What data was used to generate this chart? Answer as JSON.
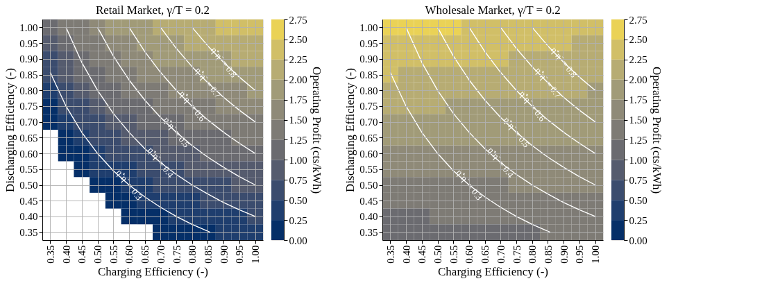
{
  "chart_data": [
    {
      "type": "heatmap",
      "title": "Retail Market, γ/T = 0.2",
      "xlabel": "Charging Efficiency (-)",
      "ylabel": "Discharging Efficiency (-)",
      "clabel": "Operating Profit (cts/kWh)",
      "x": [
        0.35,
        0.4,
        0.45,
        0.5,
        0.55,
        0.6,
        0.65,
        0.7,
        0.75,
        0.8,
        0.85,
        0.9,
        0.95,
        1.0
      ],
      "y": [
        1.0,
        0.95,
        0.9,
        0.85,
        0.8,
        0.75,
        0.7,
        0.65,
        0.6,
        0.55,
        0.5,
        0.45,
        0.4,
        0.35
      ],
      "xlim": [
        0.325,
        1.025
      ],
      "ylim": [
        0.325,
        1.025
      ],
      "xticks": [
        0.35,
        {
          "value": 0.4,
          "label": "0.40"
        },
        0.45,
        {
          "value": 0.5,
          "label": "0.50"
        },
        0.55,
        {
          "value": 0.6,
          "label": "0.60"
        },
        0.65,
        {
          "value": 0.7,
          "label": "0.70"
        },
        0.75,
        {
          "value": 0.8,
          "label": "0.80"
        },
        0.85,
        {
          "value": 0.9,
          "label": "0.90"
        },
        0.95,
        {
          "value": 1.0,
          "label": "1.00"
        }
      ],
      "yticks": [
        0.35,
        {
          "value": 0.4,
          "label": "0.40"
        },
        0.45,
        {
          "value": 0.5,
          "label": "0.50"
        },
        0.55,
        {
          "value": 0.6,
          "label": "0.60"
        },
        0.65,
        {
          "value": 0.7,
          "label": "0.70"
        },
        0.75,
        {
          "value": 0.8,
          "label": "0.80"
        },
        0.85,
        {
          "value": 0.9,
          "label": "0.90"
        },
        0.95,
        {
          "value": 1.0,
          "label": "1.00"
        }
      ],
      "cells": [
        [
          1.02,
          1.28,
          1.48,
          1.64,
          1.78,
          1.89,
          1.98,
          2.06,
          2.13,
          2.19,
          2.24,
          2.29,
          2.33,
          2.37
        ],
        [
          0.86,
          1.12,
          1.33,
          1.49,
          1.62,
          1.73,
          1.82,
          1.9,
          1.97,
          2.03,
          2.09,
          2.14,
          2.18,
          2.22
        ],
        [
          0.71,
          0.97,
          1.17,
          1.33,
          1.47,
          1.58,
          1.67,
          1.75,
          1.82,
          1.88,
          1.93,
          1.98,
          2.02,
          2.06
        ],
        [
          0.55,
          0.81,
          1.02,
          1.18,
          1.31,
          1.42,
          1.51,
          1.59,
          1.66,
          1.72,
          1.78,
          1.83,
          1.87,
          1.91
        ],
        [
          0.4,
          0.66,
          0.86,
          1.02,
          1.16,
          1.27,
          1.36,
          1.44,
          1.51,
          1.57,
          1.62,
          1.67,
          1.71,
          1.75
        ],
        [
          0.24,
          0.5,
          0.71,
          0.87,
          1.0,
          1.11,
          1.2,
          1.28,
          1.35,
          1.41,
          1.47,
          1.52,
          1.56,
          1.6
        ],
        [
          0.09,
          0.35,
          0.55,
          0.71,
          0.85,
          0.96,
          1.05,
          1.13,
          1.2,
          1.26,
          1.31,
          1.36,
          1.4,
          1.44
        ],
        [
          null,
          0.19,
          0.4,
          0.56,
          0.69,
          0.8,
          0.89,
          0.97,
          1.04,
          1.1,
          1.16,
          1.21,
          1.25,
          1.29
        ],
        [
          null,
          0.04,
          0.24,
          0.4,
          0.54,
          0.65,
          0.74,
          0.82,
          0.89,
          0.95,
          1.0,
          1.05,
          1.09,
          1.13
        ],
        [
          null,
          null,
          0.09,
          0.25,
          0.38,
          0.49,
          0.58,
          0.66,
          0.73,
          0.79,
          0.85,
          0.9,
          0.94,
          0.98
        ],
        [
          null,
          null,
          null,
          0.09,
          0.23,
          0.34,
          0.43,
          0.51,
          0.58,
          0.64,
          0.69,
          0.74,
          0.78,
          0.82
        ],
        [
          null,
          null,
          null,
          null,
          0.07,
          0.18,
          0.27,
          0.35,
          0.42,
          0.48,
          0.54,
          0.59,
          0.63,
          0.67
        ],
        [
          null,
          null,
          null,
          null,
          null,
          0.03,
          0.12,
          0.2,
          0.27,
          0.33,
          0.38,
          0.43,
          0.47,
          0.51
        ],
        [
          null,
          null,
          null,
          null,
          null,
          null,
          null,
          0.04,
          0.11,
          0.17,
          0.23,
          0.28,
          0.32,
          0.36
        ]
      ],
      "clim": [
        0,
        2.75
      ],
      "cticks": [
        {
          "value": 0,
          "label": "0.00"
        },
        0.25,
        {
          "value": 0.5,
          "label": "0.50"
        },
        0.75,
        {
          "value": 1,
          "label": "1.00"
        },
        1.25,
        {
          "value": 1.5,
          "label": "1.50"
        },
        1.75,
        {
          "value": 2,
          "label": "2.00"
        },
        2.25,
        {
          "value": 2.5,
          "label": "2.50"
        },
        2.75
      ],
      "grid": true,
      "series": [
        {
          "type": "line",
          "name": "η⁺η⁻ = 0.3",
          "color": "#ffffff",
          "x": [
            0.35,
            0.4,
            0.45,
            0.5,
            0.55,
            0.6,
            0.65,
            0.7,
            0.75,
            0.8,
            0.857
          ],
          "values": [
            0.857,
            0.75,
            0.667,
            0.6,
            0.545,
            0.5,
            0.462,
            0.429,
            0.4,
            0.375,
            0.35
          ]
        },
        {
          "type": "line",
          "name": "η⁺η⁻ = 0.4",
          "color": "#ffffff",
          "x": [
            0.4,
            0.45,
            0.5,
            0.55,
            0.6,
            0.65,
            0.7,
            0.75,
            0.8,
            0.85,
            0.9,
            0.95,
            1.0
          ],
          "values": [
            1.0,
            0.889,
            0.8,
            0.727,
            0.667,
            0.615,
            0.571,
            0.533,
            0.5,
            0.471,
            0.444,
            0.421,
            0.4
          ]
        },
        {
          "type": "line",
          "name": "η⁺η⁻ = 0.5",
          "color": "#ffffff",
          "x": [
            0.5,
            0.55,
            0.6,
            0.65,
            0.7,
            0.75,
            0.8,
            0.85,
            0.9,
            0.95,
            1.0
          ],
          "values": [
            1.0,
            0.909,
            0.833,
            0.769,
            0.714,
            0.667,
            0.625,
            0.588,
            0.556,
            0.526,
            0.5
          ]
        },
        {
          "type": "line",
          "name": "η⁺η⁻ = 0.6",
          "color": "#ffffff",
          "x": [
            0.6,
            0.65,
            0.7,
            0.75,
            0.8,
            0.85,
            0.9,
            0.95,
            1.0
          ],
          "values": [
            1.0,
            0.923,
            0.857,
            0.8,
            0.75,
            0.706,
            0.667,
            0.632,
            0.6
          ]
        },
        {
          "type": "line",
          "name": "η⁺η⁻ = 0.7",
          "color": "#ffffff",
          "x": [
            0.7,
            0.75,
            0.8,
            0.85,
            0.9,
            0.95,
            1.0
          ],
          "values": [
            1.0,
            0.933,
            0.875,
            0.824,
            0.778,
            0.737,
            0.7
          ]
        },
        {
          "type": "line",
          "name": "η⁺η⁻ = 0.8",
          "color": "#ffffff",
          "x": [
            0.8,
            0.85,
            0.9,
            0.95,
            1.0
          ],
          "values": [
            1.0,
            0.941,
            0.889,
            0.842,
            0.8
          ]
        }
      ]
    },
    {
      "type": "heatmap",
      "title": "Wholesale Market, γ/T = 0.2",
      "xlabel": "Charging Efficiency (-)",
      "ylabel": "Discharging Efficiency (-)",
      "clabel": "Operating Profit (cts/kWh)",
      "x": [
        0.35,
        0.4,
        0.45,
        0.5,
        0.55,
        0.6,
        0.65,
        0.7,
        0.75,
        0.8,
        0.85,
        0.9,
        0.95,
        1.0
      ],
      "y": [
        1.0,
        0.95,
        0.9,
        0.85,
        0.8,
        0.75,
        0.7,
        0.65,
        0.6,
        0.55,
        0.5,
        0.45,
        0.4,
        0.35
      ],
      "xlim": [
        0.325,
        1.025
      ],
      "ylim": [
        0.325,
        1.025
      ],
      "xticks": [
        0.35,
        {
          "value": 0.4,
          "label": "0.40"
        },
        0.45,
        {
          "value": 0.5,
          "label": "0.50"
        },
        0.55,
        {
          "value": 0.6,
          "label": "0.60"
        },
        0.65,
        {
          "value": 0.7,
          "label": "0.70"
        },
        0.75,
        {
          "value": 0.8,
          "label": "0.80"
        },
        0.85,
        {
          "value": 0.9,
          "label": "0.90"
        },
        0.95,
        {
          "value": 1.0,
          "label": "1.00"
        }
      ],
      "yticks": [
        0.35,
        {
          "value": 0.4,
          "label": "0.40"
        },
        0.45,
        {
          "value": 0.5,
          "label": "0.50"
        },
        0.55,
        {
          "value": 0.6,
          "label": "0.60"
        },
        0.65,
        {
          "value": 0.7,
          "label": "0.70"
        },
        0.75,
        {
          "value": 0.8,
          "label": "0.80"
        },
        0.85,
        {
          "value": 0.9,
          "label": "0.90"
        },
        0.95,
        {
          "value": 1.0,
          "label": "1.00"
        }
      ],
      "cells": [
        [
          2.6,
          2.57,
          2.55,
          2.53,
          2.52,
          2.48,
          2.46,
          2.44,
          2.41,
          2.39,
          2.37,
          2.35,
          2.32,
          2.3
        ],
        [
          2.48,
          2.46,
          2.44,
          2.42,
          2.4,
          2.38,
          2.36,
          2.34,
          2.32,
          2.3,
          2.28,
          2.26,
          2.24,
          2.22
        ],
        [
          2.37,
          2.35,
          2.33,
          2.32,
          2.3,
          2.28,
          2.27,
          2.25,
          2.23,
          2.21,
          2.2,
          2.18,
          2.16,
          2.15
        ],
        [
          2.25,
          2.24,
          2.22,
          2.21,
          2.19,
          2.18,
          2.17,
          2.15,
          2.14,
          2.13,
          2.11,
          2.1,
          2.08,
          2.07
        ],
        [
          2.14,
          2.12,
          2.11,
          2.1,
          2.09,
          2.08,
          2.07,
          2.06,
          2.05,
          2.04,
          2.03,
          2.02,
          2.0,
          1.99
        ],
        [
          2.02,
          2.01,
          2.0,
          2.0,
          1.99,
          1.98,
          1.97,
          1.96,
          1.96,
          1.95,
          1.94,
          1.93,
          1.92,
          1.92
        ],
        [
          1.91,
          1.9,
          1.9,
          1.89,
          1.89,
          1.88,
          1.88,
          1.87,
          1.87,
          1.86,
          1.86,
          1.85,
          1.84,
          1.84
        ],
        [
          1.79,
          1.79,
          1.79,
          1.78,
          1.78,
          1.78,
          1.78,
          1.77,
          1.77,
          1.77,
          1.77,
          1.77,
          1.76,
          1.76
        ],
        [
          1.68,
          1.68,
          1.68,
          1.68,
          1.68,
          1.68,
          1.68,
          1.68,
          1.68,
          1.68,
          1.68,
          1.68,
          1.68,
          1.69
        ],
        [
          1.56,
          1.56,
          1.57,
          1.57,
          1.57,
          1.58,
          1.58,
          1.59,
          1.59,
          1.59,
          1.6,
          1.6,
          1.6,
          1.61
        ],
        [
          1.45,
          1.45,
          1.46,
          1.47,
          1.47,
          1.48,
          1.49,
          1.49,
          1.5,
          1.5,
          1.51,
          1.52,
          1.52,
          1.53
        ],
        [
          1.33,
          1.34,
          1.35,
          1.36,
          1.37,
          1.38,
          1.39,
          1.4,
          1.41,
          1.42,
          1.43,
          1.43,
          1.44,
          1.45
        ],
        [
          1.22,
          1.23,
          1.24,
          1.26,
          1.27,
          1.28,
          1.29,
          1.3,
          1.31,
          1.33,
          1.34,
          1.35,
          1.36,
          1.38
        ],
        [
          1.1,
          1.12,
          1.13,
          1.15,
          1.16,
          1.18,
          1.19,
          1.21,
          1.22,
          1.24,
          1.26,
          1.27,
          1.28,
          1.3
        ]
      ],
      "clim": [
        0,
        2.75
      ],
      "cticks": [
        {
          "value": 0,
          "label": "0.00"
        },
        0.25,
        {
          "value": 0.5,
          "label": "0.50"
        },
        0.75,
        {
          "value": 1,
          "label": "1.00"
        },
        1.25,
        {
          "value": 1.5,
          "label": "1.50"
        },
        1.75,
        {
          "value": 2,
          "label": "2.00"
        },
        2.25,
        {
          "value": 2.5,
          "label": "2.50"
        },
        2.75
      ],
      "grid": true,
      "series": [
        {
          "type": "line",
          "name": "η⁺η⁻ = 0.3",
          "color": "#ffffff",
          "x": [
            0.35,
            0.4,
            0.45,
            0.5,
            0.55,
            0.6,
            0.65,
            0.7,
            0.75,
            0.8,
            0.857
          ],
          "values": [
            0.857,
            0.75,
            0.667,
            0.6,
            0.545,
            0.5,
            0.462,
            0.429,
            0.4,
            0.375,
            0.35
          ]
        },
        {
          "type": "line",
          "name": "η⁺η⁻ = 0.4",
          "color": "#ffffff",
          "x": [
            0.4,
            0.45,
            0.5,
            0.55,
            0.6,
            0.65,
            0.7,
            0.75,
            0.8,
            0.85,
            0.9,
            0.95,
            1.0
          ],
          "values": [
            1.0,
            0.889,
            0.8,
            0.727,
            0.667,
            0.615,
            0.571,
            0.533,
            0.5,
            0.471,
            0.444,
            0.421,
            0.4
          ]
        },
        {
          "type": "line",
          "name": "η⁺η⁻ = 0.5",
          "color": "#ffffff",
          "x": [
            0.5,
            0.55,
            0.6,
            0.65,
            0.7,
            0.75,
            0.8,
            0.85,
            0.9,
            0.95,
            1.0
          ],
          "values": [
            1.0,
            0.909,
            0.833,
            0.769,
            0.714,
            0.667,
            0.625,
            0.588,
            0.556,
            0.526,
            0.5
          ]
        },
        {
          "type": "line",
          "name": "η⁺η⁻ = 0.6",
          "color": "#ffffff",
          "x": [
            0.6,
            0.65,
            0.7,
            0.75,
            0.8,
            0.85,
            0.9,
            0.95,
            1.0
          ],
          "values": [
            1.0,
            0.923,
            0.857,
            0.8,
            0.75,
            0.706,
            0.667,
            0.632,
            0.6
          ]
        },
        {
          "type": "line",
          "name": "η⁺η⁻ = 0.7",
          "color": "#ffffff",
          "x": [
            0.7,
            0.75,
            0.8,
            0.85,
            0.9,
            0.95,
            1.0
          ],
          "values": [
            1.0,
            0.933,
            0.875,
            0.824,
            0.778,
            0.737,
            0.7
          ]
        },
        {
          "type": "line",
          "name": "η⁺η⁻ = 0.8",
          "color": "#ffffff",
          "x": [
            0.8,
            0.85,
            0.9,
            0.95,
            1.0
          ],
          "values": [
            1.0,
            0.941,
            0.889,
            0.842,
            0.8
          ]
        }
      ]
    }
  ]
}
